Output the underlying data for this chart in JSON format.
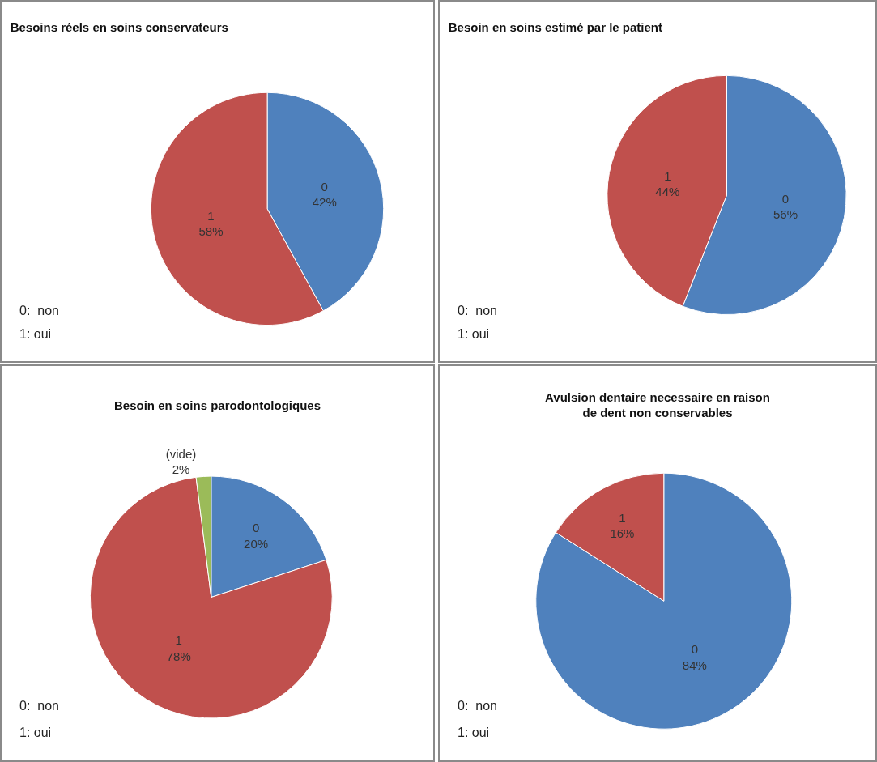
{
  "chart_data": [
    {
      "type": "pie",
      "title": "Besoins réels en soins conservateurs",
      "categories": [
        "0",
        "1"
      ],
      "values": [
        42,
        58
      ],
      "value_labels": [
        "42%",
        "58%"
      ],
      "colors": [
        "#4f81bd",
        "#c0504d"
      ],
      "legend": false,
      "annotations": [
        "0:  non",
        "1: oui"
      ]
    },
    {
      "type": "pie",
      "title": "Besoin en soins estimé par le patient",
      "categories": [
        "0",
        "1"
      ],
      "values": [
        56,
        44
      ],
      "value_labels": [
        "56%",
        "44%"
      ],
      "colors": [
        "#4f81bd",
        "#c0504d"
      ],
      "legend": false,
      "annotations": [
        "0:  non",
        "1: oui"
      ]
    },
    {
      "type": "pie",
      "title": "Besoin en soins parodontologiques",
      "categories": [
        "0",
        "1",
        "(vide)"
      ],
      "values": [
        20,
        78,
        2
      ],
      "value_labels": [
        "20%",
        "78%",
        "2%"
      ],
      "colors": [
        "#4f81bd",
        "#c0504d",
        "#9bbb59"
      ],
      "legend": false,
      "annotations": [
        "0:  non",
        "1: oui"
      ]
    },
    {
      "type": "pie",
      "title": "Avulsion dentaire necessaire en raison\nde dent non conservables",
      "categories": [
        "0",
        "1"
      ],
      "values": [
        84,
        16
      ],
      "value_labels": [
        "84%",
        "16%"
      ],
      "colors": [
        "#4f81bd",
        "#c0504d"
      ],
      "legend": false,
      "annotations": [
        "0:  non",
        "1: oui"
      ]
    }
  ]
}
